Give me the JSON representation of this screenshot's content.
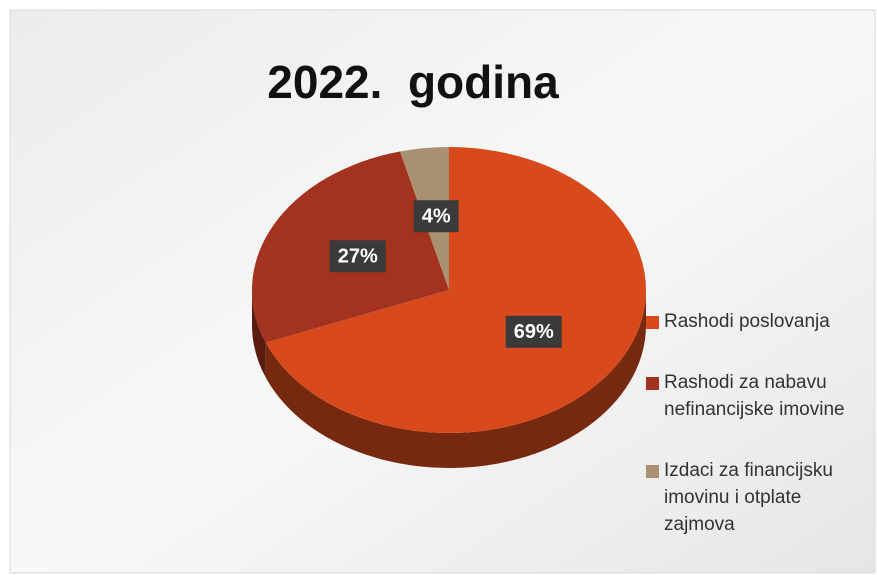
{
  "chart_data": {
    "type": "pie",
    "title": "2022.  godina",
    "categories": [
      "Rashodi poslovanja",
      "Rashodi za nabavu nefinancijske imovine",
      "Izdaci za financijsku imovinu i otplate zajmova"
    ],
    "values": [
      69,
      27,
      4
    ],
    "value_labels": [
      "69%",
      "27%",
      "4%"
    ],
    "colors": [
      "#d84a1b",
      "#a3321f",
      "#a89070"
    ],
    "legend": "right"
  }
}
